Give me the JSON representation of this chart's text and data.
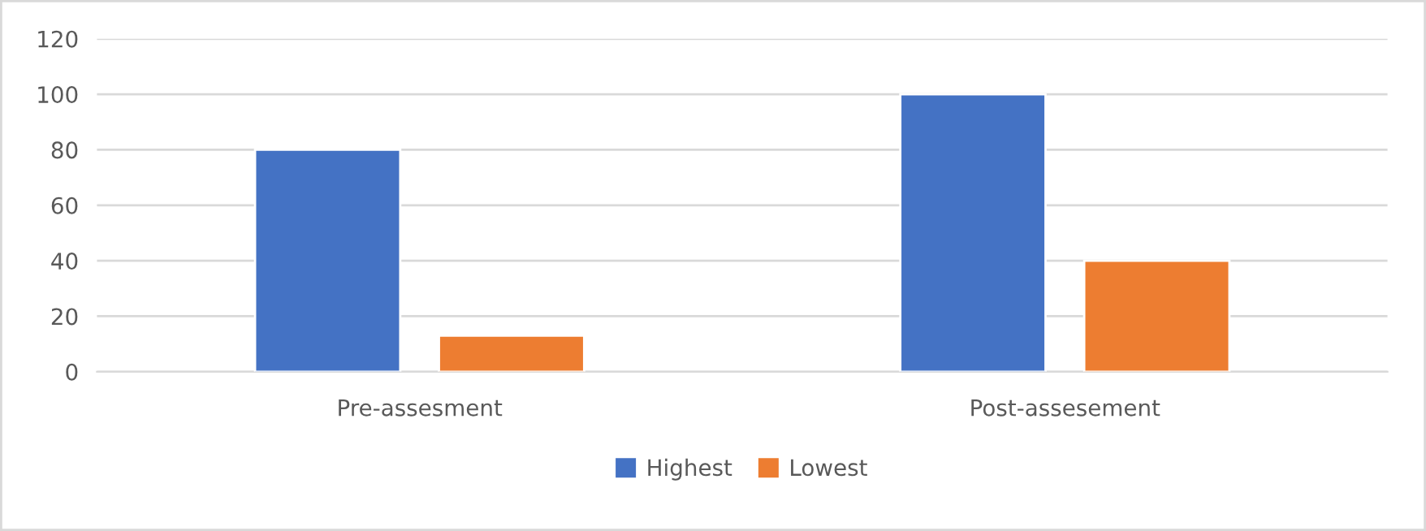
{
  "chart_data": {
    "type": "bar",
    "categories": [
      "Pre-assesment",
      "Post-assesement"
    ],
    "series": [
      {
        "name": "Highest",
        "color": "#4472c4",
        "values": [
          80,
          100
        ]
      },
      {
        "name": "Lowest",
        "color": "#ed7d31",
        "values": [
          13,
          40
        ]
      }
    ],
    "ylim": [
      0,
      120
    ],
    "yticks": [
      0,
      20,
      40,
      60,
      80,
      100,
      120
    ],
    "grid": "y",
    "legend": "bottom"
  }
}
